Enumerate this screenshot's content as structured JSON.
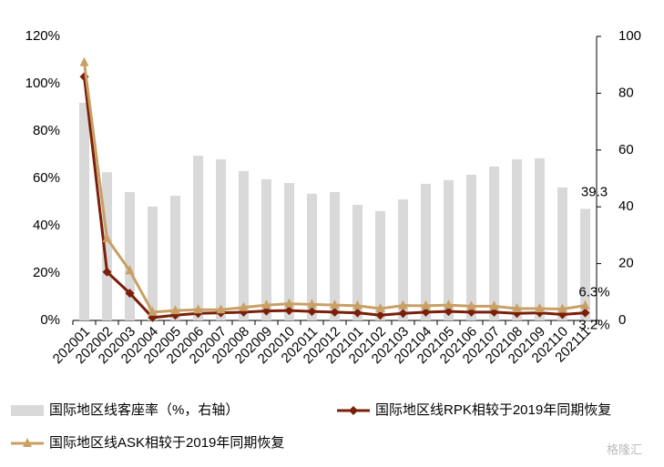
{
  "chart_data": {
    "type": "bar-line",
    "categories": [
      "202001",
      "202002",
      "202003",
      "202004",
      "202005",
      "202006",
      "202007",
      "202008",
      "202009",
      "202010",
      "202011",
      "202012",
      "202101",
      "202102",
      "202103",
      "202104",
      "202105",
      "202106",
      "202107",
      "202108",
      "202109",
      "202110",
      "202111"
    ],
    "ylim": [
      0,
      120
    ],
    "yticks": [
      {
        "value": 0,
        "label": "0%"
      },
      {
        "value": 20,
        "label": "20%"
      },
      {
        "value": 40,
        "label": "40%"
      },
      {
        "value": 60,
        "label": "60%"
      },
      {
        "value": 80,
        "label": "80%"
      },
      {
        "value": 100,
        "label": "100%"
      },
      {
        "value": 120,
        "label": "120%"
      }
    ],
    "y2lim": [
      0,
      100
    ],
    "y2ticks": [
      0,
      20,
      40,
      60,
      80,
      100
    ],
    "series": [
      {
        "name": "国际地区线客座率（%，右轴）",
        "type": "bar",
        "axis": "y2",
        "color": "#d9d9d9",
        "values": [
          76.6,
          52.2,
          45.2,
          40.1,
          43.9,
          58,
          56.7,
          52.6,
          49.7,
          48.4,
          44.6,
          45.2,
          40.7,
          38.5,
          42.6,
          48.1,
          49.4,
          51.3,
          54.2,
          56.7,
          57.1,
          46.8,
          39.3
        ],
        "value_labels": [
          null,
          null,
          null,
          null,
          null,
          null,
          null,
          null,
          null,
          null,
          null,
          null,
          null,
          null,
          null,
          null,
          null,
          null,
          null,
          null,
          null,
          null,
          "39.3"
        ]
      },
      {
        "name": "国际地区线RPK相较于2019年同期恢复",
        "type": "line",
        "color": "#7b1f0a",
        "marker": "diamond",
        "label_position": "below",
        "values": [
          103,
          20.5,
          11.5,
          1.2,
          2.2,
          3,
          3.2,
          3.5,
          4,
          4.2,
          3.8,
          3.5,
          3.2,
          2.2,
          3,
          3.5,
          3.8,
          3.5,
          3.5,
          3,
          3.2,
          2.5,
          3.2
        ],
        "value_labels": [
          null,
          null,
          null,
          null,
          null,
          null,
          null,
          null,
          null,
          null,
          null,
          null,
          null,
          null,
          null,
          null,
          null,
          null,
          null,
          null,
          null,
          null,
          "3.2%"
        ]
      },
      {
        "name": "国际地区线ASK相较于2019年同期恢复",
        "type": "line",
        "color": "#c8a064",
        "marker": "triangle",
        "label_position": "above",
        "values": [
          109,
          34.6,
          21,
          3.5,
          4.2,
          4.5,
          4.5,
          5.5,
          6.5,
          7,
          6.8,
          6.5,
          6.2,
          5,
          6.3,
          6.2,
          6.5,
          6,
          6,
          5,
          5,
          4.8,
          6.3
        ],
        "value_labels": [
          null,
          null,
          null,
          null,
          null,
          null,
          null,
          null,
          null,
          null,
          null,
          null,
          null,
          null,
          null,
          null,
          null,
          null,
          null,
          null,
          null,
          null,
          "6.3%"
        ]
      }
    ],
    "watermark": "格隆汇"
  }
}
